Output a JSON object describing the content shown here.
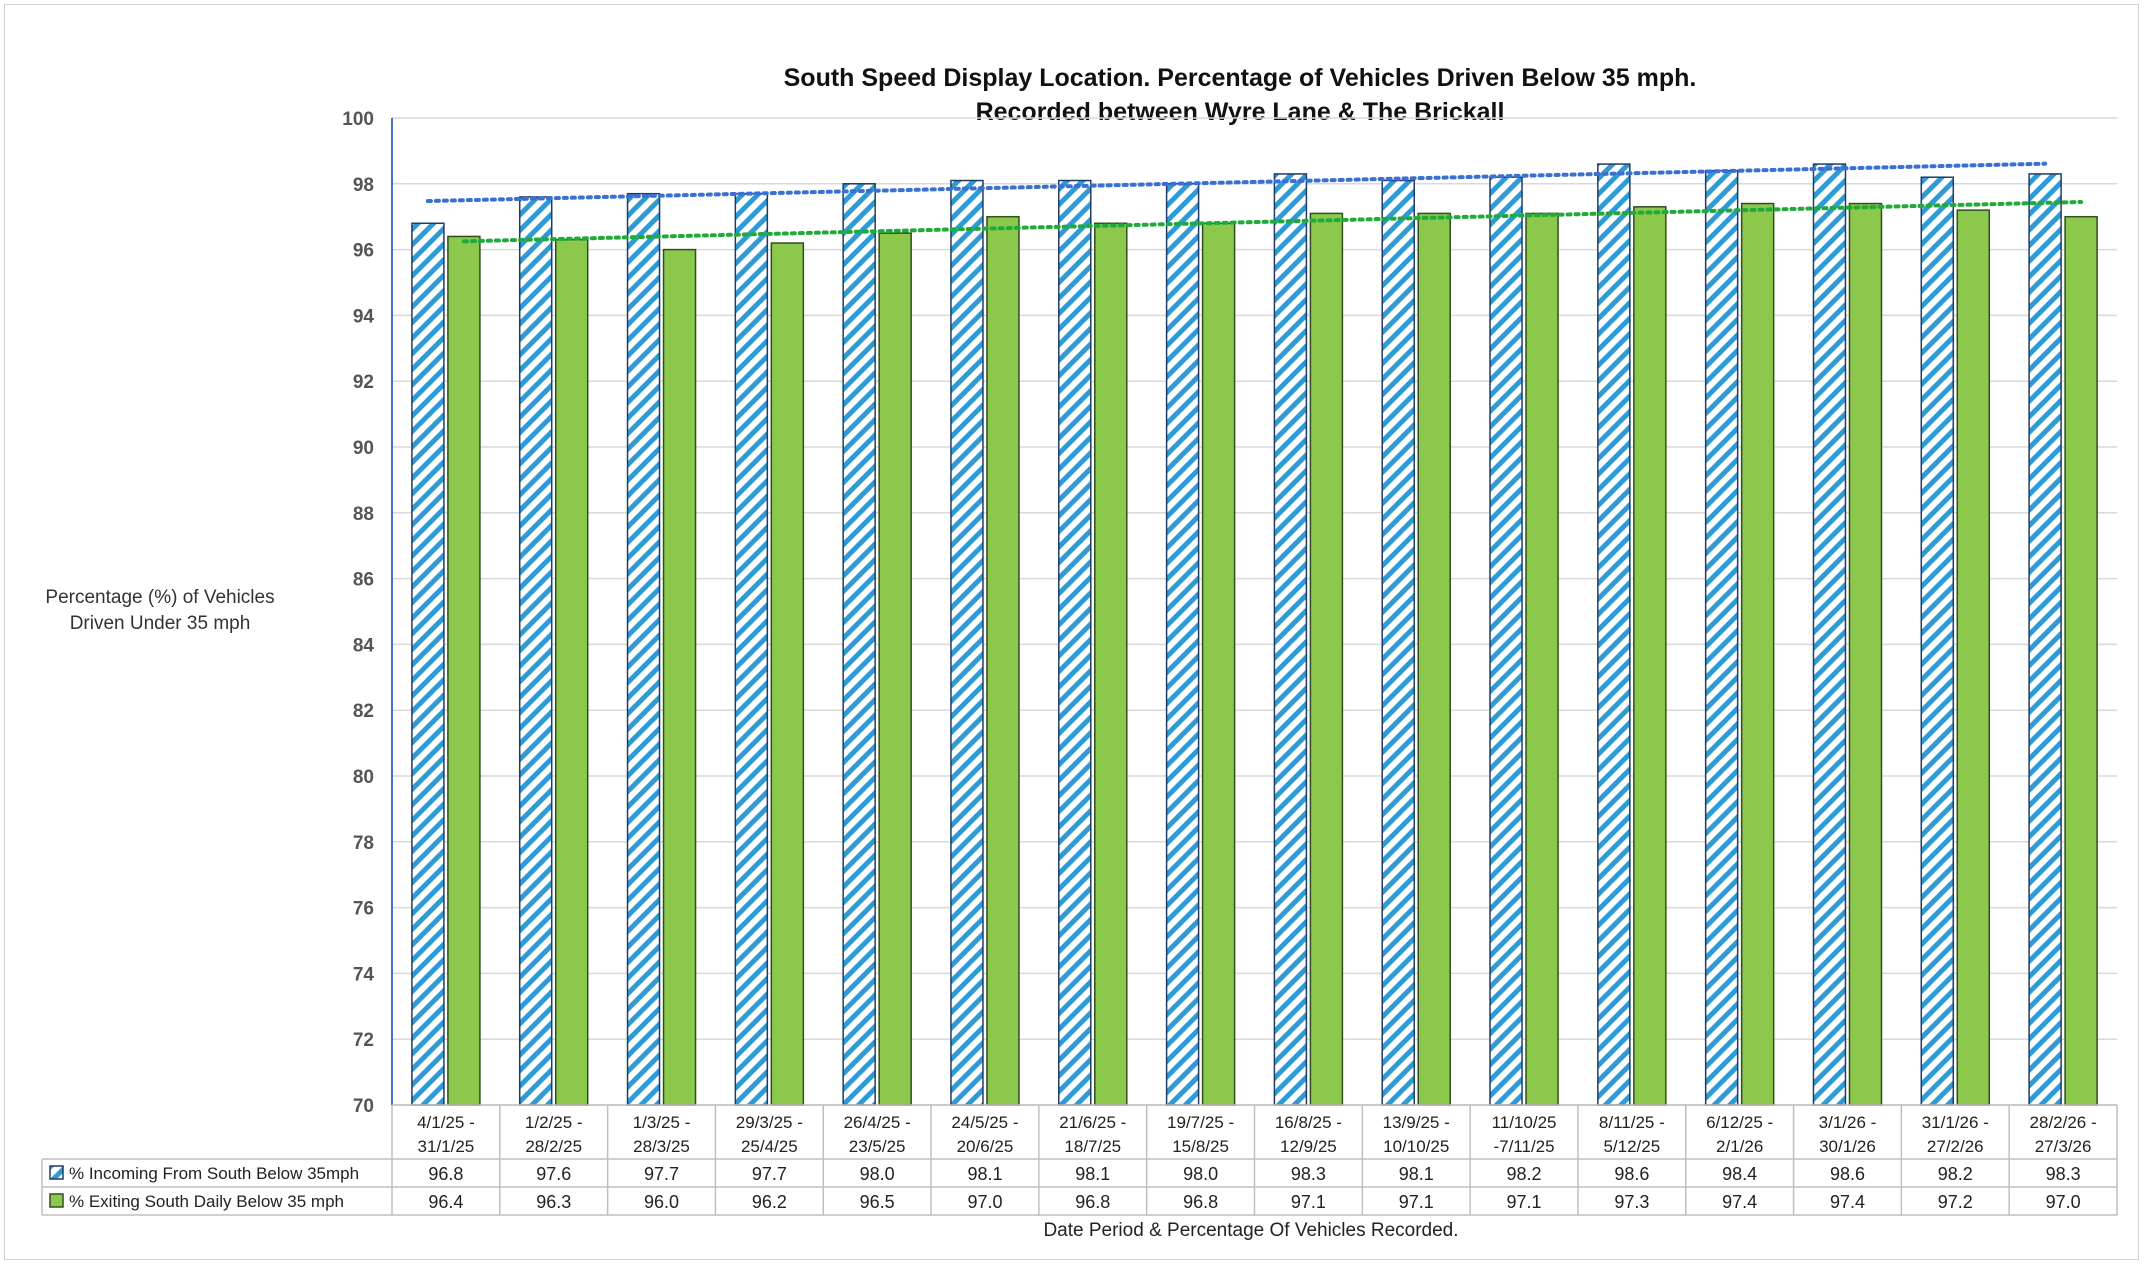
{
  "chart_data": {
    "type": "bar",
    "title": "South Speed Display Location. Percentage of Vehicles Driven Below 35 mph.",
    "subtitle": "Recorded between Wyre Lane & The Brickall",
    "ylabel": "Percentage (%) of Vehicles Driven Under 35 mph",
    "xlabel": "Date Period & Percentage Of Vehicles Recorded.",
    "ylim": [
      70,
      100
    ],
    "yticks": [
      70,
      72,
      74,
      76,
      78,
      80,
      82,
      84,
      86,
      88,
      90,
      92,
      94,
      96,
      98,
      100
    ],
    "grid": true,
    "legend": "table",
    "categories": [
      [
        "4/1/25 -",
        "31/1/25"
      ],
      [
        "1/2/25 -",
        "28/2/25"
      ],
      [
        "1/3/25 -",
        "28/3/25"
      ],
      [
        "29/3/25 -",
        "25/4/25"
      ],
      [
        "26/4/25 -",
        "23/5/25"
      ],
      [
        "24/5/25 -",
        "20/6/25"
      ],
      [
        "21/6/25 -",
        "18/7/25"
      ],
      [
        "19/7/25 -",
        "15/8/25"
      ],
      [
        "16/8/25 -",
        "12/9/25"
      ],
      [
        "13/9/25 -",
        "10/10/25"
      ],
      [
        "11/10/25",
        "-7/11/25"
      ],
      [
        "8/11/25 -",
        "5/12/25"
      ],
      [
        "6/12/25 -",
        "2/1/26"
      ],
      [
        "3/1/26 -",
        "30/1/26"
      ],
      [
        "31/1/26 -",
        "27/2/26"
      ],
      [
        "28/2/26 -",
        "27/3/26"
      ]
    ],
    "series": [
      {
        "name": "% Incoming From South Below 35mph",
        "color": "#2E9BD6",
        "pattern": "diagonal-hatch",
        "values": [
          96.8,
          97.6,
          97.7,
          97.7,
          98.0,
          98.1,
          98.1,
          98.0,
          98.3,
          98.1,
          98.2,
          98.6,
          98.4,
          98.6,
          98.2,
          98.3
        ],
        "labels": [
          "96.8",
          "97.6",
          "97.7",
          "97.7",
          "98.0",
          "98.1",
          "98.1",
          "98.0",
          "98.3",
          "98.1",
          "98.2",
          "98.6",
          "98.4",
          "98.6",
          "98.2",
          "98.3"
        ],
        "trendline_color": "#3B6FD1"
      },
      {
        "name": "% Exiting South Daily Below 35 mph",
        "color": "#8CC84B",
        "pattern": "solid",
        "values": [
          96.4,
          96.3,
          96.0,
          96.2,
          96.5,
          97.0,
          96.8,
          96.8,
          97.1,
          97.1,
          97.1,
          97.3,
          97.4,
          97.4,
          97.2,
          97.0
        ],
        "labels": [
          "96.4",
          "96.3",
          "96.0",
          "96.2",
          "96.5",
          "97.0",
          "96.8",
          "96.8",
          "97.1",
          "97.1",
          "97.1",
          "97.3",
          "97.4",
          "97.4",
          "97.2",
          "97.0"
        ],
        "trendline_color": "#1FAA3A"
      }
    ]
  }
}
